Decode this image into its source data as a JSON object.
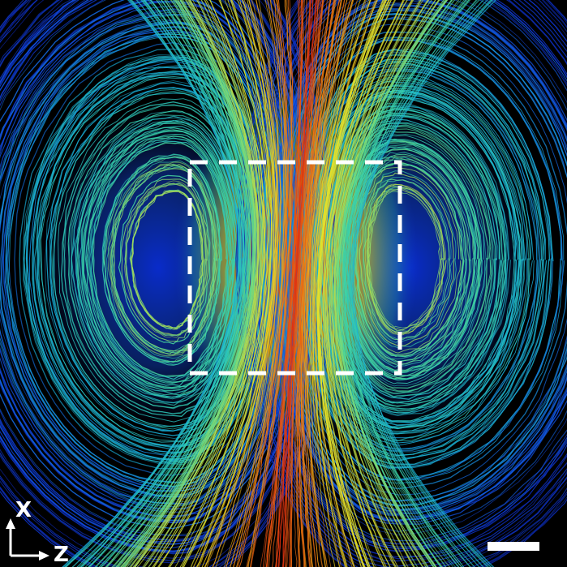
{
  "figure": {
    "background": "#000000",
    "colormap": [
      "#0a1a8a",
      "#1040e0",
      "#18b0d8",
      "#3ad6a8",
      "#c8e040",
      "#f0e020",
      "#f07a10",
      "#e02a10"
    ],
    "colormap_name": "jet",
    "roi_box_color": "#ffffff",
    "scalebar_color": "#ffffff"
  },
  "axes_indicator": {
    "vertical_label": "X",
    "horizontal_label": "Z",
    "color": "#ffffff"
  }
}
